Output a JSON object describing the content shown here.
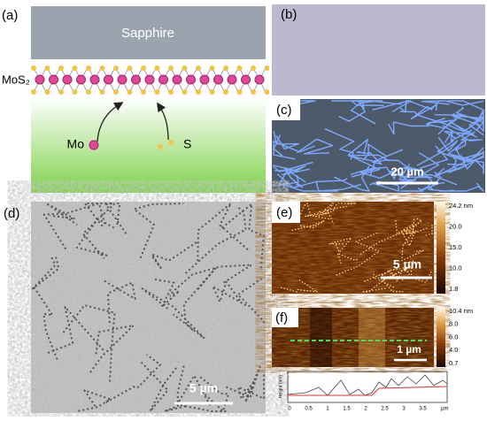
{
  "panels": {
    "a": {
      "label": "(a)",
      "substrate": "Sapphire",
      "layer": "MoS₂",
      "source_mo": "Mo",
      "source_s": "S"
    },
    "b": {
      "label": "(b)"
    },
    "c": {
      "label": "(c)",
      "scale_bar": "20 µm"
    },
    "d": {
      "label": "(d)",
      "scale_bar": "5 µm"
    },
    "e": {
      "label": "(e)",
      "scale_bar": "5 µm",
      "colorbar_ticks": [
        "24.2 nm",
        "20.0",
        "15.0",
        "10.0",
        "1.8"
      ]
    },
    "f": {
      "label": "(f)",
      "scale_bar": "1 µm",
      "colorbar_ticks": [
        "10.4 nm",
        "8.0",
        "6.0",
        "4.0",
        "0.7"
      ],
      "profile": {
        "y_label": "Height (nm)",
        "x_unit": "µm",
        "x_ticks": [
          "0",
          "0.5",
          "1",
          "1.5",
          "2",
          "2.5",
          "3",
          "3.5"
        ]
      }
    }
  }
}
